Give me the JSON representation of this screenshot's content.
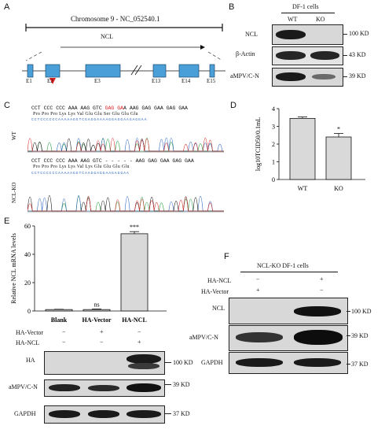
{
  "panels": {
    "A": "A",
    "B": "B",
    "C": "C",
    "D": "D",
    "E": "E",
    "F": "F"
  },
  "panel_a": {
    "chromosome_label": "Chromosome 9 - NC_052540.1",
    "gene_label": "NCL",
    "exons": [
      "E1",
      "E2",
      "E3",
      "E13",
      "E14",
      "E15"
    ]
  },
  "panel_b": {
    "title": "DF-1 cells",
    "lanes": [
      "WT",
      "KO"
    ],
    "rows": [
      {
        "label": "NCL",
        "kd": "100 KD"
      },
      {
        "label": "β-Actin",
        "kd": "43 KD"
      },
      {
        "label": "aMPV/C-N",
        "kd": "39 KD"
      }
    ]
  },
  "panel_c": {
    "wt_label": "WT",
    "ko_label": "NCL-KO",
    "wt_seq_black1": "CCT CCC CCC AAA AAG GTC ",
    "wt_seq_red": "GAG GA",
    "wt_seq_black2": "A AAG GAG GAA GAG GAA",
    "wt_aa": "Pro Pro Pro Lys Lys Val Glu Glu Ser Glu Glu Glu",
    "wt_bases": "CCTCCCCCCAAAAAGGTCGAGGAAAAGGAGGAAGAGGAA",
    "ko_seq": "CCT CCC CCC AAA AAG GTC - - - - - AAG GAG GAA GAG GAA",
    "ko_aa": "Pro Pro Pro Lys Lys Val Lys Glu Glu Glu Glu",
    "ko_bases": "CCTCCCCCCAAAAAGGTCAAGGAGGAAGAGGAA"
  },
  "chart_data": [
    {
      "type": "bar",
      "panel": "D",
      "categories": [
        "WT",
        "KO"
      ],
      "values": [
        3.45,
        2.4
      ],
      "errors": [
        0.08,
        0.2
      ],
      "ylabel": "log10TCID50/0.1mL",
      "ylim": [
        0,
        4
      ],
      "yticks": [
        "0",
        "1",
        "2",
        "3",
        "4"
      ],
      "annotations": [
        "",
        "*"
      ],
      "bar_color": "#d9d9d9"
    },
    {
      "type": "bar",
      "panel": "E",
      "categories": [
        "Blank",
        "HA-Vector",
        "HA-NCL"
      ],
      "values": [
        1,
        1,
        54.5
      ],
      "errors": [
        0.2,
        0.4,
        1.5
      ],
      "ylabel": "Relative NCL mRNA levels",
      "ylim": [
        0,
        60
      ],
      "yticks": [
        "0",
        "20",
        "40",
        "60"
      ],
      "annotations": [
        "",
        "ns",
        "***"
      ],
      "bar_color": "#d9d9d9"
    }
  ],
  "panel_e": {
    "condition_rows": [
      {
        "label": "HA-Vector",
        "marks": [
          "−",
          "+",
          "−"
        ]
      },
      {
        "label": "HA-NCL",
        "marks": [
          "−",
          "−",
          "+"
        ]
      }
    ],
    "blots": [
      {
        "label": "HA",
        "kd": "100 KD"
      },
      {
        "label": "aMPV/C-N",
        "kd": "39 KD"
      },
      {
        "label": "GAPDH",
        "kd": "37 KD"
      }
    ]
  },
  "panel_f": {
    "title": "NCL-KO DF-1 cells",
    "condition_rows": [
      {
        "label": "HA-NCL",
        "marks": [
          "−",
          "+"
        ]
      },
      {
        "label": "HA-Vector",
        "marks": [
          "+",
          "−"
        ]
      }
    ],
    "blots": [
      {
        "label": "NCL",
        "kd": "100 KD"
      },
      {
        "label": "aMPV/C-N",
        "kd": "39 KD"
      },
      {
        "label": "GAPDH",
        "kd": "37 KD"
      }
    ]
  }
}
